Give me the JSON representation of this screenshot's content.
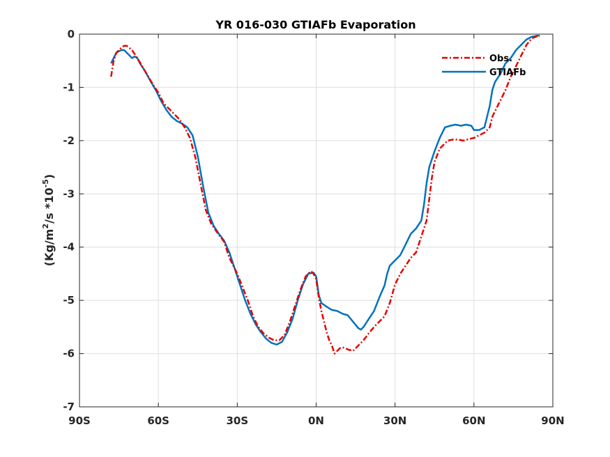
{
  "chart_data": {
    "type": "line",
    "title": "YR 016-030 GTIAFb Evaporation",
    "xlabel": "",
    "ylabel": {
      "main": "(Kg/m",
      "sup1": "2",
      "mid": "/s *10",
      "sup2": "-5",
      "end": ")"
    },
    "xlim": [
      -90,
      90
    ],
    "ylim": [
      -7,
      0
    ],
    "x_ticks": [
      -90,
      -60,
      -30,
      0,
      30,
      60,
      90
    ],
    "x_tick_labels": [
      "90S",
      "60S",
      "30S",
      "0N",
      "30N",
      "60N",
      "90N"
    ],
    "y_ticks": [
      0,
      -1,
      -2,
      -3,
      -4,
      -5,
      -6,
      -7
    ],
    "y_tick_labels": [
      "0",
      "-1",
      "-2",
      "-3",
      "-4",
      "-5",
      "-6",
      "-7"
    ],
    "grid": true,
    "legend_position": "top-right",
    "colors": {
      "obs": "#e60000",
      "model": "#0072bd",
      "grid": "#dedede",
      "axis": "#262626"
    },
    "series": [
      {
        "name": "Obs.",
        "style": "dash-dot",
        "points": [
          [
            -78,
            -0.8
          ],
          [
            -77,
            -0.5
          ],
          [
            -76,
            -0.35
          ],
          [
            -75,
            -0.3
          ],
          [
            -74,
            -0.25
          ],
          [
            -73,
            -0.22
          ],
          [
            -72,
            -0.22
          ],
          [
            -70,
            -0.3
          ],
          [
            -68,
            -0.45
          ],
          [
            -65,
            -0.7
          ],
          [
            -62,
            -0.95
          ],
          [
            -60,
            -1.1
          ],
          [
            -58,
            -1.3
          ],
          [
            -56,
            -1.4
          ],
          [
            -54,
            -1.5
          ],
          [
            -52,
            -1.6
          ],
          [
            -50,
            -1.75
          ],
          [
            -48,
            -1.95
          ],
          [
            -46,
            -2.3
          ],
          [
            -44,
            -2.8
          ],
          [
            -42,
            -3.3
          ],
          [
            -40,
            -3.55
          ],
          [
            -38,
            -3.7
          ],
          [
            -35,
            -3.9
          ],
          [
            -33,
            -4.2
          ],
          [
            -30,
            -4.5
          ],
          [
            -28,
            -4.75
          ],
          [
            -26,
            -5.0
          ],
          [
            -24,
            -5.3
          ],
          [
            -22,
            -5.5
          ],
          [
            -20,
            -5.62
          ],
          [
            -18,
            -5.7
          ],
          [
            -16,
            -5.75
          ],
          [
            -14,
            -5.75
          ],
          [
            -12,
            -5.65
          ],
          [
            -10,
            -5.4
          ],
          [
            -8,
            -5.1
          ],
          [
            -6,
            -4.8
          ],
          [
            -4,
            -4.55
          ],
          [
            -2,
            -4.45
          ],
          [
            -1,
            -4.5
          ],
          [
            0,
            -4.6
          ],
          [
            1,
            -4.95
          ],
          [
            2,
            -5.2
          ],
          [
            3,
            -5.4
          ],
          [
            4,
            -5.6
          ],
          [
            5,
            -5.75
          ],
          [
            6,
            -5.85
          ],
          [
            7,
            -6.0
          ],
          [
            8,
            -5.95
          ],
          [
            9,
            -5.9
          ],
          [
            10,
            -5.88
          ],
          [
            12,
            -5.92
          ],
          [
            14,
            -5.95
          ],
          [
            16,
            -5.85
          ],
          [
            18,
            -5.75
          ],
          [
            20,
            -5.62
          ],
          [
            22,
            -5.5
          ],
          [
            24,
            -5.4
          ],
          [
            26,
            -5.3
          ],
          [
            28,
            -5.05
          ],
          [
            30,
            -4.7
          ],
          [
            32,
            -4.5
          ],
          [
            34,
            -4.35
          ],
          [
            36,
            -4.2
          ],
          [
            38,
            -4.1
          ],
          [
            40,
            -3.8
          ],
          [
            42,
            -3.5
          ],
          [
            43,
            -3.1
          ],
          [
            44,
            -2.7
          ],
          [
            45,
            -2.4
          ],
          [
            47,
            -2.15
          ],
          [
            50,
            -2.0
          ],
          [
            52,
            -1.98
          ],
          [
            54,
            -1.98
          ],
          [
            56,
            -2.0
          ],
          [
            58,
            -1.97
          ],
          [
            60,
            -1.95
          ],
          [
            62,
            -1.9
          ],
          [
            64,
            -1.85
          ],
          [
            66,
            -1.75
          ],
          [
            67,
            -1.55
          ],
          [
            68,
            -1.45
          ],
          [
            70,
            -1.25
          ],
          [
            72,
            -1.05
          ],
          [
            74,
            -0.8
          ],
          [
            76,
            -0.6
          ],
          [
            78,
            -0.4
          ],
          [
            80,
            -0.2
          ],
          [
            82,
            -0.08
          ],
          [
            84,
            -0.04
          ],
          [
            85,
            -0.05
          ]
        ]
      },
      {
        "name": "GTIAFb",
        "style": "solid",
        "points": [
          [
            -78,
            -0.55
          ],
          [
            -77,
            -0.45
          ],
          [
            -76,
            -0.35
          ],
          [
            -75,
            -0.32
          ],
          [
            -74,
            -0.3
          ],
          [
            -73,
            -0.3
          ],
          [
            -72,
            -0.35
          ],
          [
            -71,
            -0.4
          ],
          [
            -70,
            -0.45
          ],
          [
            -69,
            -0.42
          ],
          [
            -68,
            -0.45
          ],
          [
            -67,
            -0.55
          ],
          [
            -65,
            -0.7
          ],
          [
            -63,
            -0.88
          ],
          [
            -61,
            -1.05
          ],
          [
            -59,
            -1.25
          ],
          [
            -57,
            -1.42
          ],
          [
            -55,
            -1.55
          ],
          [
            -53,
            -1.63
          ],
          [
            -51,
            -1.68
          ],
          [
            -49,
            -1.75
          ],
          [
            -47,
            -1.9
          ],
          [
            -45,
            -2.3
          ],
          [
            -43,
            -2.85
          ],
          [
            -41,
            -3.35
          ],
          [
            -39,
            -3.6
          ],
          [
            -37,
            -3.75
          ],
          [
            -35,
            -3.88
          ],
          [
            -33,
            -4.1
          ],
          [
            -31,
            -4.4
          ],
          [
            -29,
            -4.7
          ],
          [
            -27,
            -5.0
          ],
          [
            -25,
            -5.25
          ],
          [
            -23,
            -5.45
          ],
          [
            -21,
            -5.6
          ],
          [
            -19,
            -5.72
          ],
          [
            -17,
            -5.8
          ],
          [
            -15,
            -5.83
          ],
          [
            -13,
            -5.78
          ],
          [
            -11,
            -5.6
          ],
          [
            -9,
            -5.35
          ],
          [
            -7,
            -5.0
          ],
          [
            -5,
            -4.7
          ],
          [
            -3,
            -4.5
          ],
          [
            -1,
            -4.48
          ],
          [
            0,
            -4.55
          ],
          [
            1,
            -4.9
          ],
          [
            2,
            -5.05
          ],
          [
            4,
            -5.12
          ],
          [
            6,
            -5.18
          ],
          [
            8,
            -5.2
          ],
          [
            10,
            -5.25
          ],
          [
            12,
            -5.28
          ],
          [
            14,
            -5.4
          ],
          [
            16,
            -5.52
          ],
          [
            17,
            -5.55
          ],
          [
            18,
            -5.5
          ],
          [
            20,
            -5.35
          ],
          [
            22,
            -5.2
          ],
          [
            24,
            -4.95
          ],
          [
            26,
            -4.72
          ],
          [
            27,
            -4.5
          ],
          [
            28,
            -4.35
          ],
          [
            30,
            -4.25
          ],
          [
            32,
            -4.15
          ],
          [
            34,
            -3.95
          ],
          [
            36,
            -3.75
          ],
          [
            38,
            -3.65
          ],
          [
            40,
            -3.5
          ],
          [
            41,
            -3.2
          ],
          [
            42,
            -2.8
          ],
          [
            43,
            -2.5
          ],
          [
            45,
            -2.2
          ],
          [
            47,
            -1.95
          ],
          [
            49,
            -1.75
          ],
          [
            51,
            -1.72
          ],
          [
            53,
            -1.7
          ],
          [
            55,
            -1.72
          ],
          [
            57,
            -1.7
          ],
          [
            59,
            -1.72
          ],
          [
            60,
            -1.8
          ],
          [
            62,
            -1.8
          ],
          [
            64,
            -1.75
          ],
          [
            65,
            -1.55
          ],
          [
            66,
            -1.35
          ],
          [
            67,
            -1.05
          ],
          [
            68,
            -0.9
          ],
          [
            70,
            -0.75
          ],
          [
            72,
            -0.55
          ],
          [
            74,
            -0.45
          ],
          [
            76,
            -0.3
          ],
          [
            78,
            -0.2
          ],
          [
            80,
            -0.1
          ],
          [
            82,
            -0.05
          ],
          [
            84,
            -0.03
          ],
          [
            85,
            -0.03
          ]
        ]
      }
    ]
  }
}
